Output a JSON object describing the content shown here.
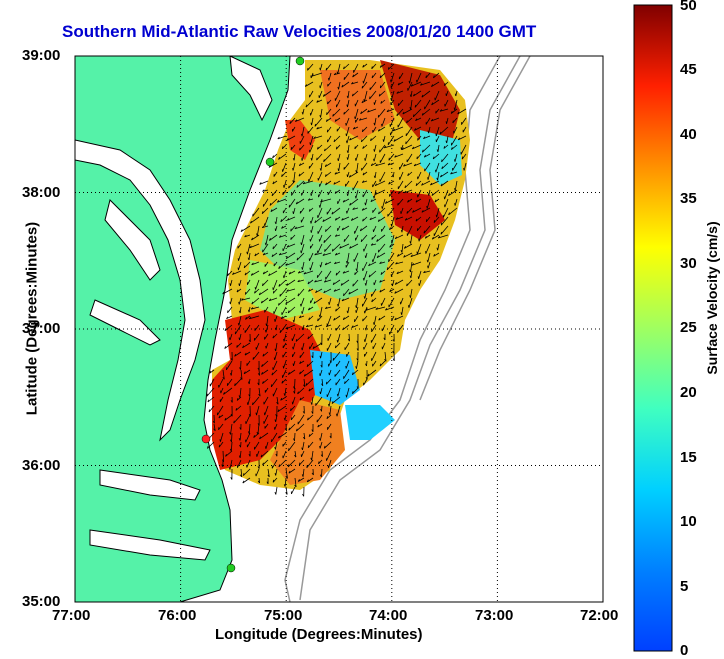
{
  "title": "Southern Mid-Atlantic Raw Velocities 2008/01/20 1400 GMT",
  "xlabel": "Longitude (Degrees:Minutes)",
  "ylabel": "Latitude (Degrees:Minutes)",
  "colorbar": {
    "label": "Surface Velocity (cm/s)",
    "ticks": [
      "0",
      "5",
      "10",
      "15",
      "20",
      "25",
      "30",
      "35",
      "40",
      "45",
      "50"
    ],
    "min": 0,
    "max": 50,
    "colormap": "jet"
  },
  "axes": {
    "x_ticks": [
      "77:00",
      "76:00",
      "75:00",
      "74:00",
      "73:00",
      "72:00"
    ],
    "y_ticks": [
      "39:00",
      "38:00",
      "37:00",
      "36:00",
      "35:00"
    ],
    "xlim": [
      -77,
      -72
    ],
    "ylim": [
      35,
      39
    ],
    "grid": "dotted"
  },
  "colors": {
    "land": "#55f2a8",
    "land_edge": "#000000",
    "bathymetry": "#888888",
    "sites": "#22cc22",
    "site_highlight": "#ff2222"
  }
}
